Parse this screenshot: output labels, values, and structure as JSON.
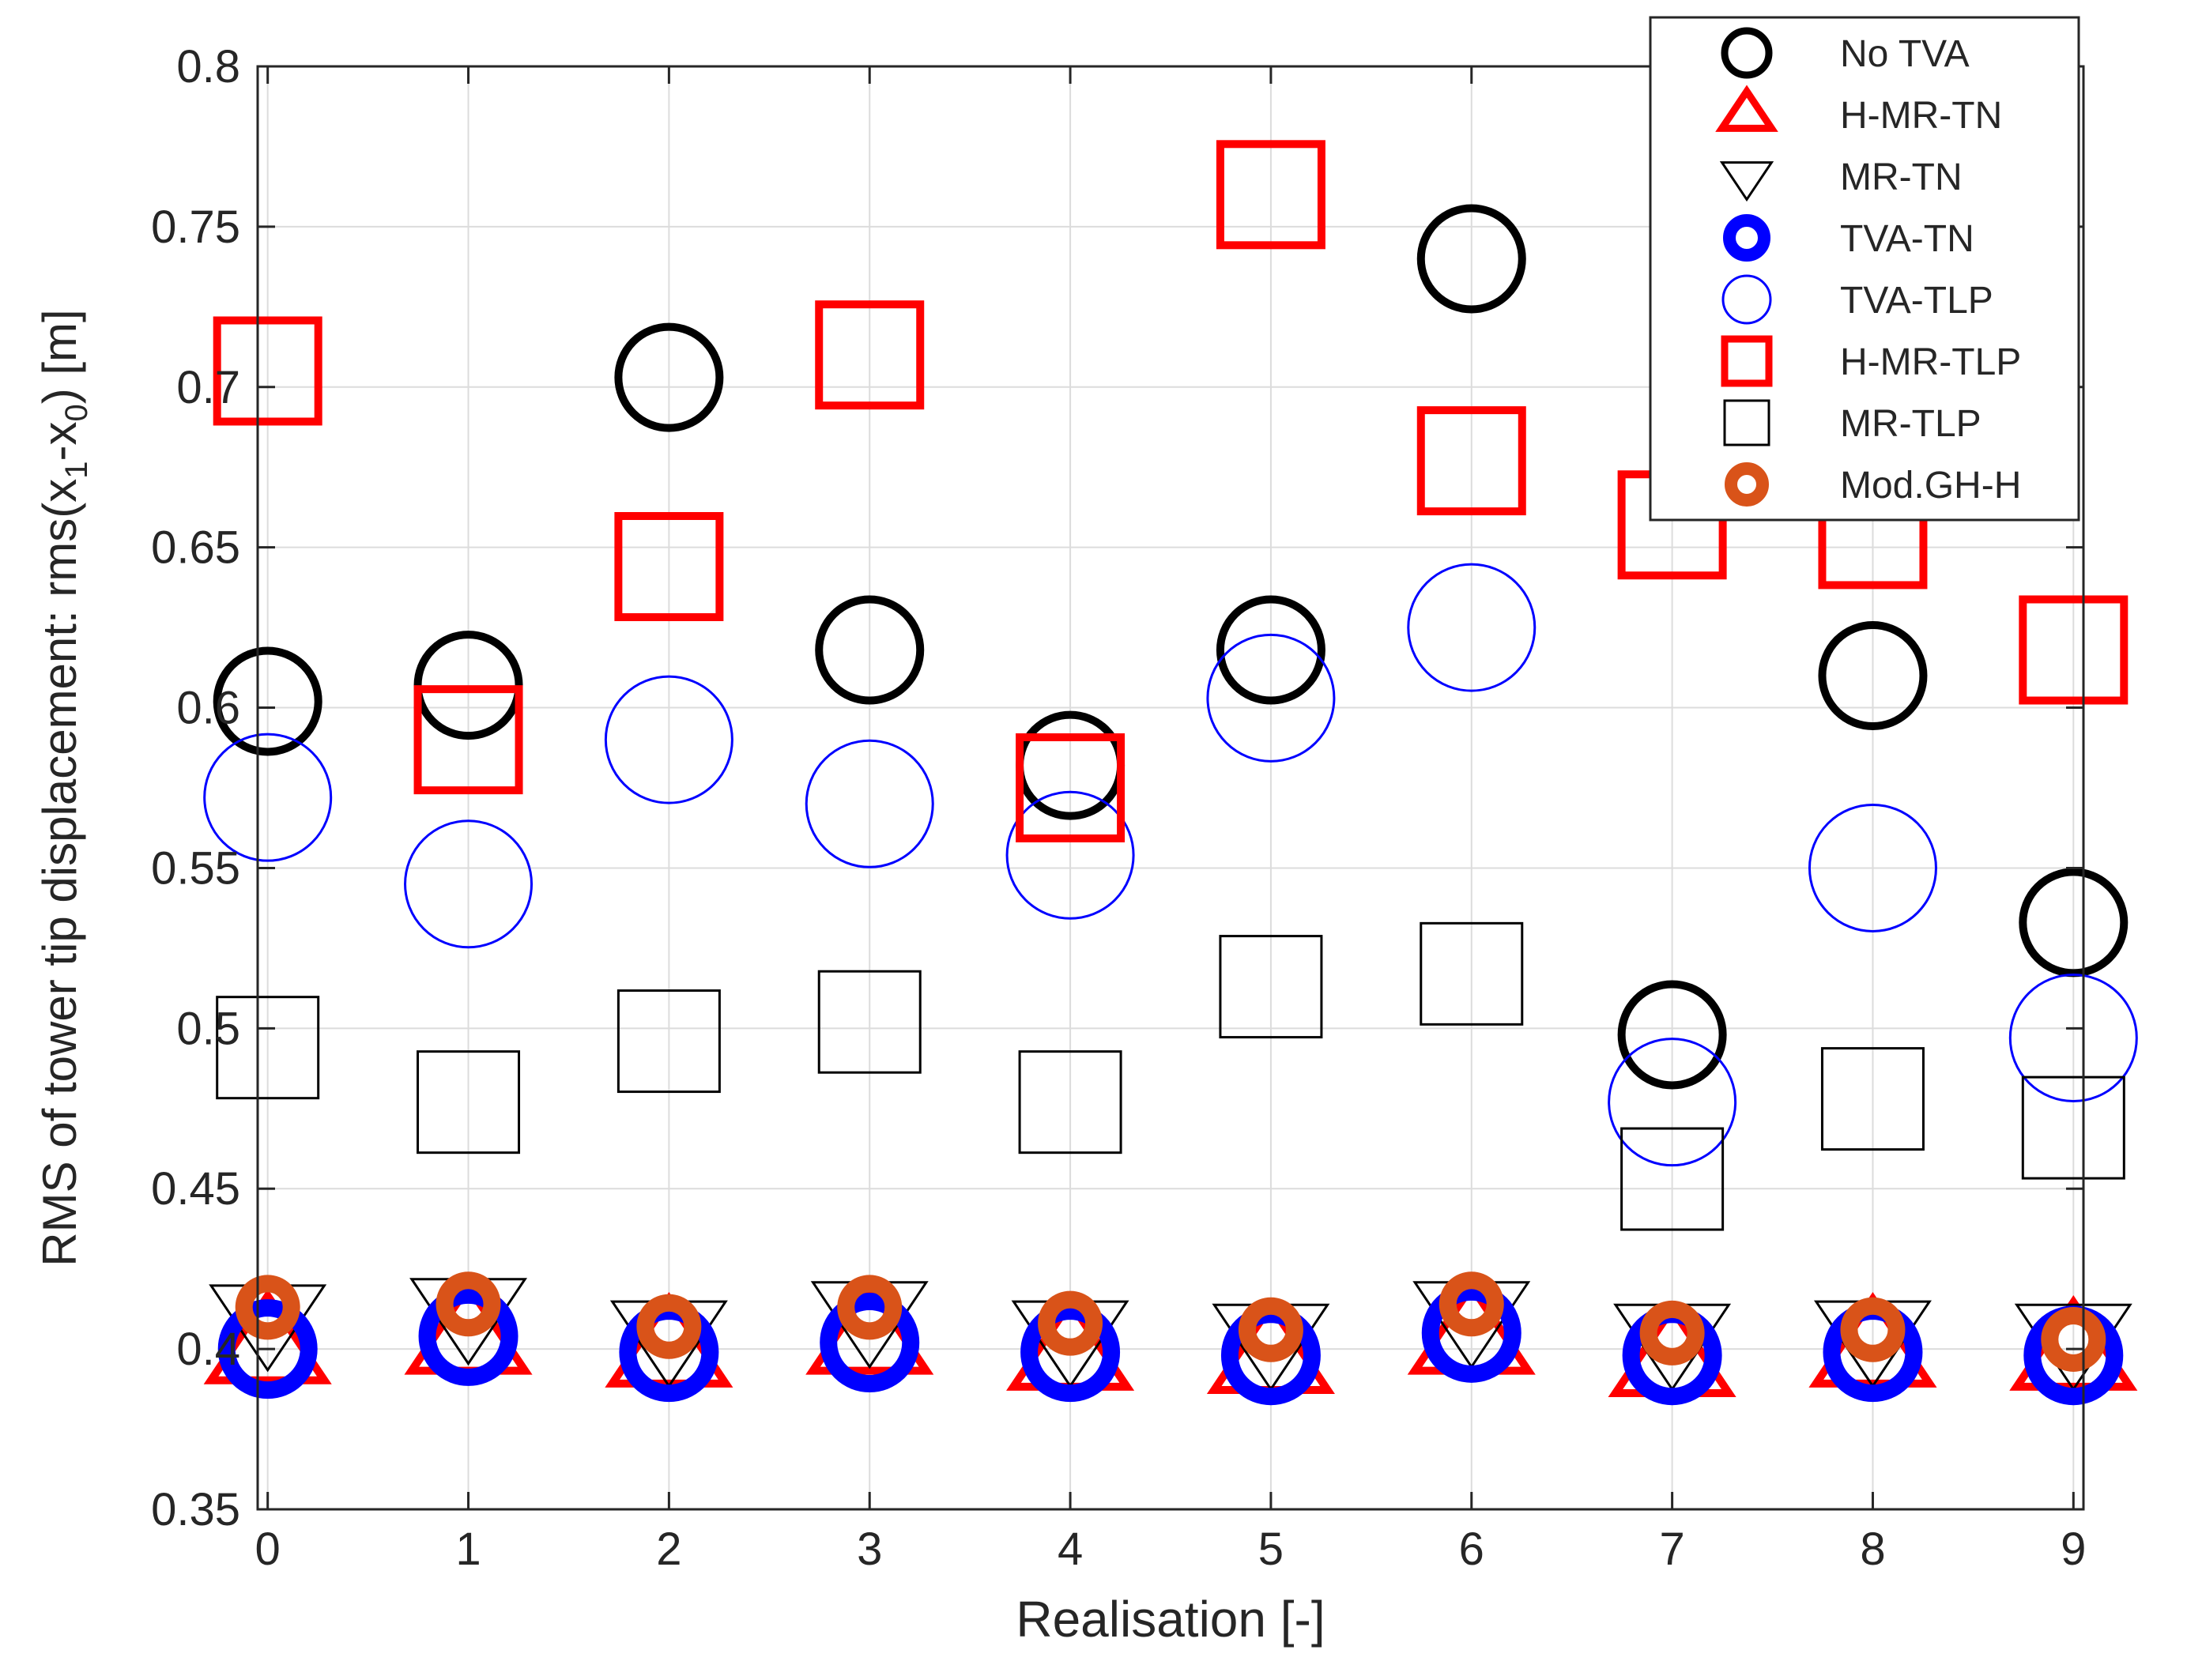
{
  "chart_data": {
    "type": "scatter",
    "xlabel": "Realisation [-]",
    "ylabel": "RMS of tower tip displacement: rms(x₁-x₀) [m]",
    "ylabel_parts": {
      "prefix": "RMS of tower tip displacement: rms(x",
      "sub1": "1",
      "middle": "-x",
      "sub2": "0",
      "suffix": ") [m]"
    },
    "xlim": [
      -0.05,
      9.05
    ],
    "ylim": [
      0.35,
      0.8
    ],
    "x_ticks": [
      0,
      1,
      2,
      3,
      4,
      5,
      6,
      7,
      8,
      9
    ],
    "x_tick_labels": [
      "0",
      "1",
      "2",
      "3",
      "4",
      "5",
      "6",
      "7",
      "8",
      "9"
    ],
    "y_ticks": [
      0.35,
      0.4,
      0.45,
      0.5,
      0.55,
      0.6,
      0.65,
      0.7,
      0.75,
      0.8
    ],
    "y_tick_labels": [
      "0.35",
      "0.4",
      "0.45",
      "0.5",
      "0.55",
      "0.6",
      "0.65",
      "0.7",
      "0.75",
      "0.8"
    ],
    "grid": true,
    "legend_position": "top-right",
    "x": [
      0,
      1,
      2,
      3,
      4,
      5,
      6,
      7,
      8,
      9
    ],
    "series": [
      {
        "name": "No TVA",
        "marker": "circle",
        "color": "#000000",
        "fill": "none",
        "stroke_weight": "thick",
        "marker_size": "large",
        "values": [
          0.602,
          0.607,
          0.703,
          0.618,
          0.582,
          0.618,
          0.74,
          0.498,
          0.61,
          0.533
        ]
      },
      {
        "name": "H-MR-TN",
        "marker": "triangle-up",
        "color": "#ff0000",
        "fill": "none",
        "stroke_weight": "thick",
        "marker_size": "large",
        "values": [
          0.4,
          0.403,
          0.399,
          0.403,
          0.398,
          0.397,
          0.403,
          0.396,
          0.399,
          0.398
        ]
      },
      {
        "name": "MR-TN",
        "marker": "triangle-down",
        "color": "#000000",
        "fill": "none",
        "stroke_weight": "thin",
        "marker_size": "large",
        "values": [
          0.41,
          0.412,
          0.405,
          0.411,
          0.405,
          0.404,
          0.411,
          0.404,
          0.405,
          0.404
        ]
      },
      {
        "name": "TVA-TN",
        "marker": "circle",
        "color": "#0000ff",
        "fill": "none",
        "stroke_weight": "very-thick",
        "marker_size": "medium",
        "values": [
          0.4,
          0.404,
          0.399,
          0.402,
          0.399,
          0.398,
          0.405,
          0.398,
          0.399,
          0.398
        ]
      },
      {
        "name": "TVA-TLP",
        "marker": "circle",
        "color": "#0000ff",
        "fill": "none",
        "stroke_weight": "thin",
        "marker_size": "xlarge",
        "values": [
          0.572,
          0.545,
          0.59,
          0.57,
          0.554,
          0.603,
          0.625,
          0.477,
          0.55,
          0.497
        ]
      },
      {
        "name": "H-MR-TLP",
        "marker": "square",
        "color": "#ff0000",
        "fill": "none",
        "stroke_weight": "thick",
        "marker_size": "large",
        "values": [
          0.705,
          0.59,
          0.644,
          0.71,
          0.575,
          0.76,
          0.677,
          0.657,
          0.654,
          0.618
        ]
      },
      {
        "name": "MR-TLP",
        "marker": "square",
        "color": "#000000",
        "fill": "none",
        "stroke_weight": "thin",
        "marker_size": "large",
        "values": [
          0.494,
          0.477,
          0.496,
          0.502,
          0.477,
          0.513,
          0.517,
          0.453,
          0.478,
          0.469
        ]
      },
      {
        "name": "Mod.GH-H",
        "marker": "circle",
        "color": "#d95319",
        "fill": "none",
        "stroke_weight": "very-thick",
        "marker_size": "small",
        "values": [
          0.413,
          0.414,
          0.407,
          0.413,
          0.408,
          0.406,
          0.414,
          0.405,
          0.406,
          0.403
        ]
      }
    ]
  }
}
